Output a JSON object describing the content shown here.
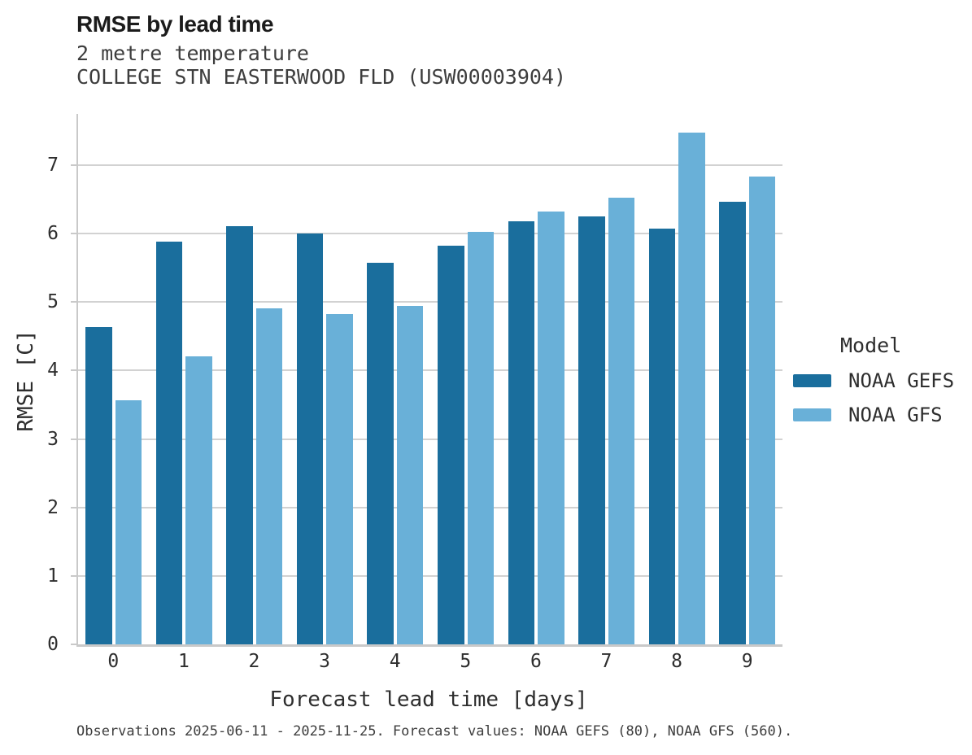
{
  "header": {
    "title": "RMSE by lead time",
    "subtitle_line1": "2 metre temperature",
    "subtitle_line2": "COLLEGE STN EASTERWOOD FLD (USW00003904)"
  },
  "chart_data": {
    "type": "bar",
    "title": "RMSE by lead time",
    "subtitle": "2 metre temperature — COLLEGE STN EASTERWOOD FLD (USW00003904)",
    "categories": [
      "0",
      "1",
      "2",
      "3",
      "4",
      "5",
      "6",
      "7",
      "8",
      "9"
    ],
    "series": [
      {
        "name": "NOAA GEFS",
        "color": "#1a6e9d",
        "values": [
          4.64,
          5.88,
          6.11,
          6.0,
          5.58,
          5.83,
          6.18,
          6.25,
          6.07,
          6.47
        ]
      },
      {
        "name": "NOAA GFS",
        "color": "#69b0d8",
        "values": [
          3.57,
          4.21,
          4.91,
          4.83,
          4.95,
          6.03,
          6.32,
          6.52,
          7.48,
          6.84
        ]
      }
    ],
    "xlabel": "Forecast lead time [days]",
    "ylabel": "RMSE [C]",
    "ylim": [
      0,
      7.75
    ],
    "yticks": [
      0,
      1,
      2,
      3,
      4,
      5,
      6,
      7
    ],
    "grid": "horizontal-only",
    "legend_title": "Model",
    "legend_position": "right"
  },
  "colors": {
    "gefs_bar": "#1a6e9d",
    "gfs_bar": "#69b0d8",
    "gridline": "#d2d2d2",
    "spine": "#c9c9c9",
    "title_text": "#1b1b1b",
    "body_text": "#3d3d3d"
  },
  "footer": {
    "note": "Observations 2025-06-11 - 2025-11-25. Forecast values: NOAA GEFS (80), NOAA GFS (560)."
  }
}
